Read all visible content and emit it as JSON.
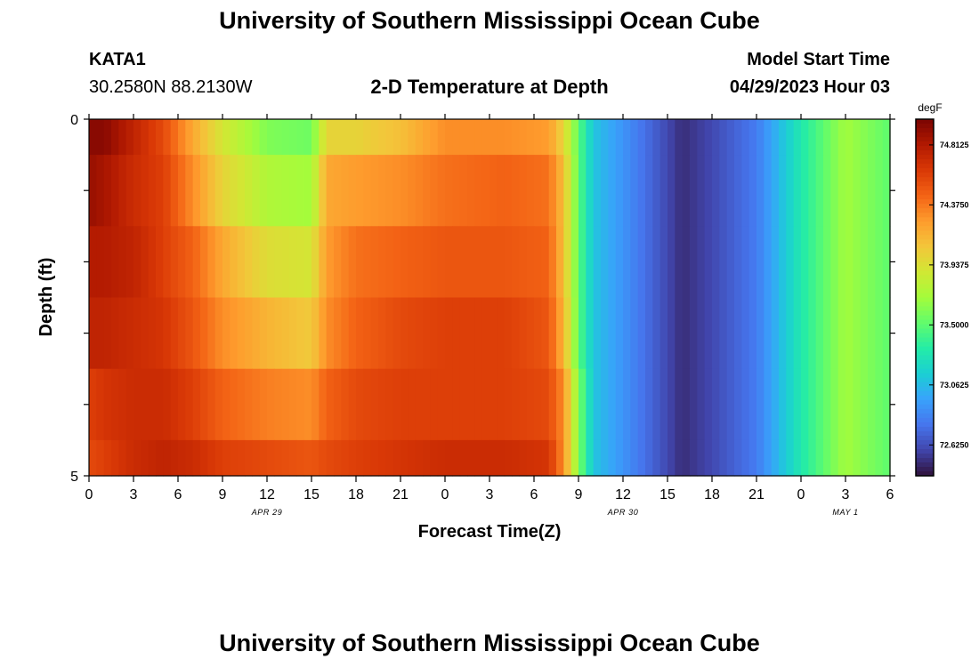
{
  "header": {
    "title": "University of Southern Mississippi Ocean Cube",
    "station_id": "KATA1",
    "station_coords": "30.2580N  88.2130W",
    "subtitle": "2-D Temperature at Depth",
    "model_start_label": "Model Start Time",
    "model_start_value": "04/29/2023 Hour 03"
  },
  "footer": {
    "title_repeat": "University of Southern Mississippi Ocean Cube"
  },
  "chart_data": {
    "type": "heatmap",
    "title": "2-D Temperature at Depth",
    "xlabel": "Forecast Time(Z)",
    "ylabel": "Depth (ft)",
    "x_hours_range": [
      0,
      54
    ],
    "ylim": [
      0,
      5
    ],
    "x_tick_labels": [
      "0",
      "3",
      "6",
      "9",
      "12",
      "15",
      "18",
      "21",
      "0",
      "3",
      "6",
      "9",
      "12",
      "15",
      "18",
      "21",
      "0",
      "3",
      "6"
    ],
    "y_tick_labels": [
      "0",
      "5"
    ],
    "date_labels": [
      {
        "text": "APR 29",
        "hour": 12
      },
      {
        "text": "APR 30",
        "hour": 36
      },
      {
        "text": "MAY 1",
        "hour": 51
      }
    ],
    "colorbar": {
      "unit": "degF",
      "min": 72.4,
      "max": 75.0,
      "tick_labels": [
        "74.8125",
        "74.3750",
        "73.9375",
        "73.5000",
        "73.0625",
        "72.6250"
      ],
      "tick_values": [
        74.8125,
        74.375,
        73.9375,
        73.5,
        73.0625,
        72.625
      ],
      "colors": [
        "#30123b",
        "#4145ab",
        "#4675ed",
        "#39a2fc",
        "#1bcfd4",
        "#24eca6",
        "#61fc6c",
        "#a4fc3b",
        "#d1e834",
        "#f3c63a",
        "#fe9b2d",
        "#f36315",
        "#d93806",
        "#b11901",
        "#7a0402"
      ]
    },
    "x_hours": [
      0.25,
      0.75,
      1.25,
      1.75,
      2.25,
      2.75,
      3.25,
      3.75,
      4.25,
      4.75,
      5.25,
      5.75,
      6.25,
      6.75,
      7.25,
      7.75,
      8.25,
      8.75,
      9.25,
      9.75,
      10.25,
      10.75,
      11.25,
      11.75,
      12.25,
      12.75,
      13.25,
      13.75,
      14.25,
      14.75,
      15.25,
      15.75,
      16.25,
      16.75,
      17.25,
      17.75,
      18.25,
      18.75,
      19.25,
      19.75,
      20.25,
      20.75,
      21.25,
      21.75,
      22.25,
      22.75,
      23.25,
      23.75,
      24.25,
      24.75,
      25.25,
      25.75,
      26.25,
      26.75,
      27.25,
      27.75,
      28.25,
      28.75,
      29.25,
      29.75,
      30.25,
      30.75,
      31.25,
      31.75,
      32.25,
      32.75,
      33.25,
      33.75,
      34.25,
      34.75,
      35.25,
      35.75,
      36.25,
      36.75,
      37.25,
      37.75,
      38.25,
      38.75,
      39.25,
      39.75,
      40.25,
      40.75,
      41.25,
      41.75,
      42.25,
      42.75,
      43.25,
      43.75,
      44.25,
      44.75,
      45.25,
      45.75,
      46.25,
      46.75,
      47.25,
      47.75,
      48.25,
      48.75,
      49.25,
      49.75,
      50.25,
      50.75,
      51.25,
      51.75,
      52.25,
      52.75,
      53.25,
      53.75
    ],
    "depth_bins": [
      [
        0,
        0.5
      ],
      [
        0.5,
        1.5
      ],
      [
        1.5,
        2.5
      ],
      [
        2.5,
        3.5
      ],
      [
        3.5,
        4.5
      ],
      [
        4.5,
        5.0
      ]
    ],
    "anchors_hours": [
      0,
      1,
      3,
      5,
      7,
      9,
      12,
      15,
      16,
      18,
      21,
      24,
      28,
      31,
      32,
      33,
      34,
      36,
      38,
      40,
      42,
      45,
      48,
      51,
      54
    ],
    "anchors_values": [
      [
        74.95,
        74.95,
        74.75,
        74.55,
        74.2,
        73.9,
        73.6,
        73.55,
        74.0,
        74.0,
        74.1,
        74.3,
        74.3,
        74.25,
        74.0,
        73.5,
        73.1,
        72.9,
        72.7,
        72.5,
        72.6,
        72.8,
        73.3,
        73.7,
        73.5
      ],
      [
        74.9,
        74.85,
        74.7,
        74.6,
        74.3,
        74.0,
        73.75,
        73.7,
        74.2,
        74.25,
        74.3,
        74.4,
        74.45,
        74.4,
        74.1,
        73.5,
        73.1,
        72.9,
        72.7,
        72.5,
        72.6,
        72.8,
        73.3,
        73.7,
        73.5
      ],
      [
        74.8,
        74.8,
        74.75,
        74.6,
        74.45,
        74.2,
        73.95,
        73.9,
        74.25,
        74.4,
        74.45,
        74.5,
        74.5,
        74.45,
        74.1,
        73.5,
        73.1,
        72.9,
        72.7,
        72.5,
        72.6,
        72.8,
        73.3,
        73.7,
        73.5
      ],
      [
        74.75,
        74.75,
        74.7,
        74.65,
        74.5,
        74.3,
        74.15,
        74.05,
        74.3,
        74.45,
        74.55,
        74.6,
        74.6,
        74.5,
        74.15,
        73.5,
        73.1,
        72.9,
        72.7,
        72.5,
        72.6,
        72.8,
        73.3,
        73.7,
        73.5
      ],
      [
        74.6,
        74.65,
        74.7,
        74.7,
        74.6,
        74.45,
        74.35,
        74.3,
        74.45,
        74.55,
        74.6,
        74.6,
        74.6,
        74.55,
        74.3,
        73.6,
        73.1,
        72.9,
        72.7,
        72.5,
        72.6,
        72.8,
        73.3,
        73.7,
        73.5
      ],
      [
        74.55,
        74.6,
        74.7,
        74.75,
        74.7,
        74.6,
        74.55,
        74.5,
        74.55,
        74.6,
        74.65,
        74.7,
        74.7,
        74.65,
        74.3,
        73.6,
        73.1,
        72.9,
        72.7,
        72.5,
        72.6,
        72.8,
        73.3,
        73.7,
        73.5
      ]
    ]
  }
}
